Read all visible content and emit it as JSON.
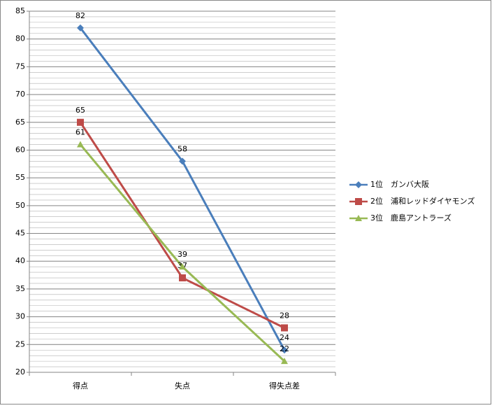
{
  "chart_data": {
    "type": "line",
    "categories": [
      "得点",
      "失点",
      "得失点差"
    ],
    "series": [
      {
        "name": "1位　ガンバ大阪",
        "color": "#4a7ebb",
        "marker": "diamond",
        "values": [
          82,
          58,
          24
        ]
      },
      {
        "name": "2位　浦和レッドダイヤモンズ",
        "color": "#be4b48",
        "marker": "square",
        "values": [
          65,
          37,
          28
        ]
      },
      {
        "name": "3位　鹿島アントラーズ",
        "color": "#98b954",
        "marker": "triangle",
        "values": [
          61,
          39,
          22
        ]
      }
    ],
    "ylim": [
      20,
      85
    ],
    "yticks": [
      20,
      25,
      30,
      35,
      40,
      45,
      50,
      55,
      60,
      65,
      70,
      75,
      80,
      85
    ],
    "grid": true,
    "legend": "right"
  }
}
